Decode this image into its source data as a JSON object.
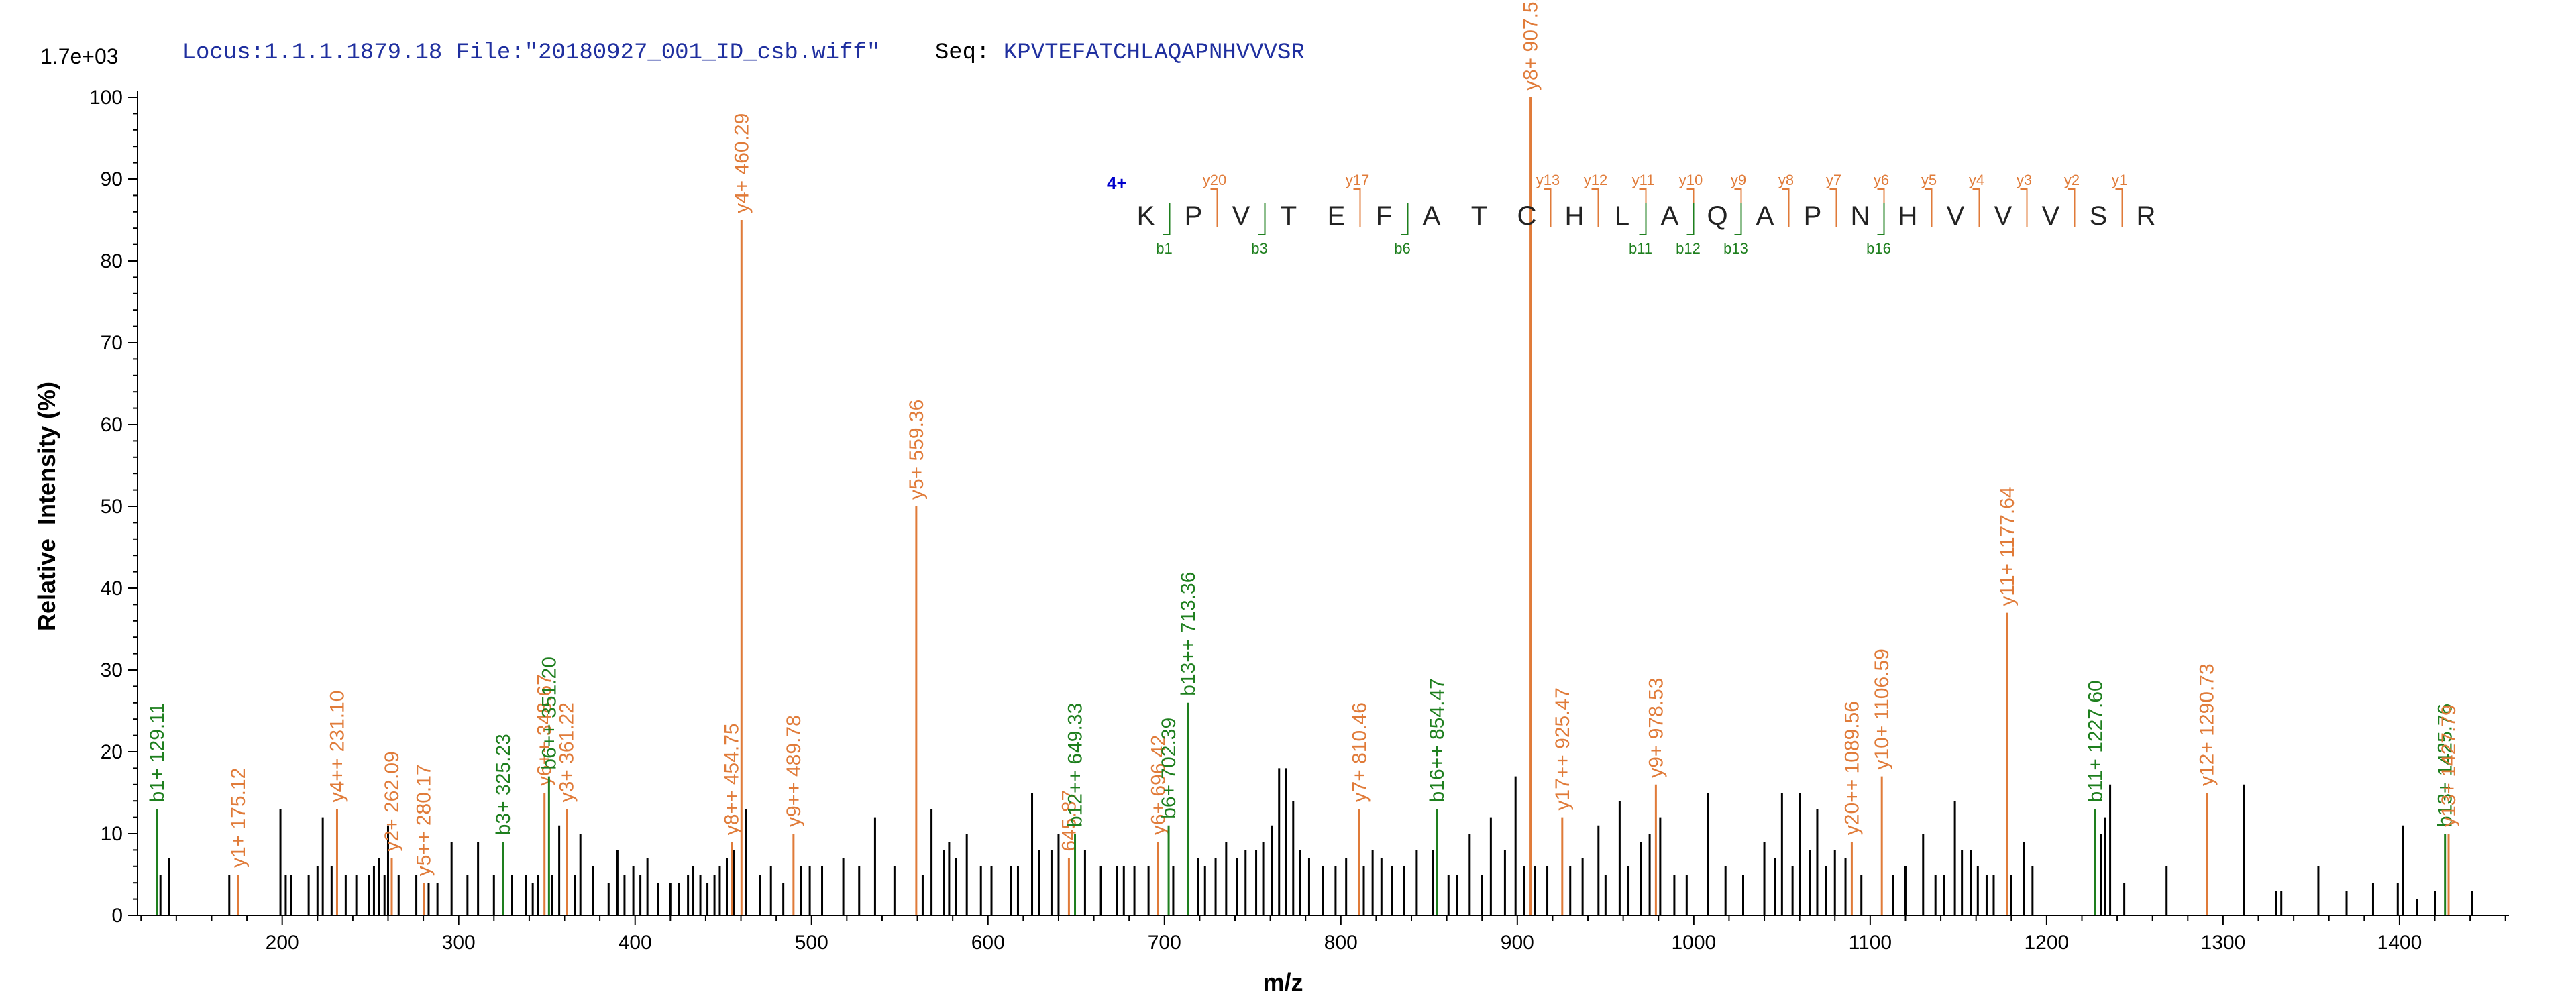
{
  "header": {
    "locus_label": "Locus:",
    "locus": "1.1.1.1879.18",
    "file_label": "File:",
    "file": "\"20180927_001_ID_csb.wiff\"",
    "seq_label": "Seq:",
    "seq": "KPVTEFATCHLAQAPNHVVVSR"
  },
  "colors": {
    "y_ion": "#E07B39",
    "b_ion": "#1E7F1E",
    "unmatched": "#000000",
    "header_blue": "#1F2F9F",
    "axis": "#000000"
  },
  "chart_data": {
    "type": "bar",
    "scale_label": "1.7e+03",
    "xlabel": "m/z",
    "ylabel": "Relative  Intensity (%)",
    "xlim": [
      118,
      1462
    ],
    "ylim": [
      0,
      100
    ],
    "x_ticks": [
      200,
      300,
      400,
      500,
      600,
      700,
      800,
      900,
      1000,
      1100,
      1200,
      1300,
      1400
    ],
    "y_ticks": [
      0,
      10,
      20,
      30,
      40,
      50,
      60,
      70,
      80,
      90,
      100
    ],
    "annotated_peaks": [
      {
        "label": "b1+ 129.11",
        "mz": 129.11,
        "intensity": 13,
        "ion": "b"
      },
      {
        "label": "y1+ 175.12",
        "mz": 175.12,
        "intensity": 5,
        "ion": "y"
      },
      {
        "label": "y4++ 231.10",
        "mz": 231.1,
        "intensity": 13,
        "ion": "y"
      },
      {
        "label": "y2+ 262.09",
        "mz": 262.09,
        "intensity": 7,
        "ion": "y"
      },
      {
        "label": "y5++ 280.17",
        "mz": 280.17,
        "intensity": 4,
        "ion": "y"
      },
      {
        "label": "b3+ 325.23",
        "mz": 325.23,
        "intensity": 9,
        "ion": "b"
      },
      {
        "label": "y6++ 348.67",
        "mz": 348.67,
        "intensity": 15,
        "ion": "y"
      },
      {
        "label": "b6++ 351.20",
        "mz": 351.2,
        "intensity": 17,
        "ion": "b"
      },
      {
        "label": "y3+ 361.22",
        "mz": 361.22,
        "intensity": 13,
        "ion": "y"
      },
      {
        "label": "y8++ 454.75",
        "mz": 454.75,
        "intensity": 9,
        "ion": "y"
      },
      {
        "label": "y4+ 460.29",
        "mz": 460.29,
        "intensity": 85,
        "ion": "y"
      },
      {
        "label": "y9++ 489.78",
        "mz": 489.78,
        "intensity": 10,
        "ion": "y"
      },
      {
        "label": "y5+ 559.36",
        "mz": 559.36,
        "intensity": 50,
        "ion": "y"
      },
      {
        "label": "645.87",
        "mz": 645.87,
        "intensity": 7,
        "ion": "y"
      },
      {
        "label": "b12++ 649.33",
        "mz": 649.33,
        "intensity": 10,
        "ion": "b"
      },
      {
        "label": "y6+ 696.42",
        "mz": 696.42,
        "intensity": 9,
        "ion": "y"
      },
      {
        "label": "b6+ 702.39",
        "mz": 702.39,
        "intensity": 11,
        "ion": "b"
      },
      {
        "label": "b13++ 713.36",
        "mz": 713.36,
        "intensity": 26,
        "ion": "b"
      },
      {
        "label": "y7+ 810.46",
        "mz": 810.46,
        "intensity": 13,
        "ion": "y"
      },
      {
        "label": "b16++ 854.47",
        "mz": 854.47,
        "intensity": 13,
        "ion": "b"
      },
      {
        "label": "y8+ 907.51",
        "mz": 907.51,
        "intensity": 100,
        "ion": "y"
      },
      {
        "label": "y17++ 925.47",
        "mz": 925.47,
        "intensity": 12,
        "ion": "y"
      },
      {
        "label": "y9+ 978.53",
        "mz": 978.53,
        "intensity": 16,
        "ion": "y"
      },
      {
        "label": "y20++ 1089.56",
        "mz": 1089.56,
        "intensity": 9,
        "ion": "y"
      },
      {
        "label": "y10+ 1106.59",
        "mz": 1106.59,
        "intensity": 17,
        "ion": "y"
      },
      {
        "label": "y11+ 1177.64",
        "mz": 1177.64,
        "intensity": 37,
        "ion": "y"
      },
      {
        "label": "b11+ 1227.60",
        "mz": 1227.6,
        "intensity": 13,
        "ion": "b"
      },
      {
        "label": "y12+ 1290.73",
        "mz": 1290.73,
        "intensity": 15,
        "ion": "y"
      },
      {
        "label": "b13+ 1425.76",
        "mz": 1425.76,
        "intensity": 10,
        "ion": "b"
      },
      {
        "label": "y13+ 1427.79",
        "mz": 1427.79,
        "intensity": 10,
        "ion": "y"
      }
    ],
    "unlabeled_peaks": [
      [
        131,
        5
      ],
      [
        136,
        7
      ],
      [
        170,
        5
      ],
      [
        199,
        13
      ],
      [
        202,
        5
      ],
      [
        205,
        5
      ],
      [
        215,
        5
      ],
      [
        220,
        6
      ],
      [
        223,
        12
      ],
      [
        228,
        6
      ],
      [
        236,
        5
      ],
      [
        242,
        5
      ],
      [
        249,
        5
      ],
      [
        252,
        6
      ],
      [
        255,
        7
      ],
      [
        258,
        5
      ],
      [
        260,
        11
      ],
      [
        266,
        5
      ],
      [
        276,
        5
      ],
      [
        283,
        4
      ],
      [
        288,
        4
      ],
      [
        296,
        9
      ],
      [
        305,
        5
      ],
      [
        311,
        9
      ],
      [
        320,
        5
      ],
      [
        330,
        5
      ],
      [
        338,
        5
      ],
      [
        342,
        4
      ],
      [
        345,
        5
      ],
      [
        353,
        5
      ],
      [
        357,
        11
      ],
      [
        366,
        5
      ],
      [
        369,
        10
      ],
      [
        376,
        6
      ],
      [
        385,
        4
      ],
      [
        390,
        8
      ],
      [
        394,
        5
      ],
      [
        399,
        6
      ],
      [
        403,
        5
      ],
      [
        407,
        7
      ],
      [
        413,
        4
      ],
      [
        420,
        4
      ],
      [
        425,
        4
      ],
      [
        430,
        5
      ],
      [
        433,
        6
      ],
      [
        437,
        5
      ],
      [
        441,
        4
      ],
      [
        445,
        5
      ],
      [
        448,
        6
      ],
      [
        452,
        7
      ],
      [
        456,
        8
      ],
      [
        463,
        13
      ],
      [
        471,
        5
      ],
      [
        477,
        6
      ],
      [
        484,
        4
      ],
      [
        494,
        6
      ],
      [
        499,
        6
      ],
      [
        506,
        6
      ],
      [
        518,
        7
      ],
      [
        527,
        6
      ],
      [
        536,
        12
      ],
      [
        547,
        6
      ],
      [
        563,
        5
      ],
      [
        568,
        13
      ],
      [
        575,
        8
      ],
      [
        578,
        9
      ],
      [
        582,
        7
      ],
      [
        588,
        10
      ],
      [
        596,
        6
      ],
      [
        602,
        6
      ],
      [
        613,
        6
      ],
      [
        617,
        6
      ],
      [
        625,
        15
      ],
      [
        629,
        8
      ],
      [
        636,
        8
      ],
      [
        640,
        10
      ],
      [
        655,
        8
      ],
      [
        664,
        6
      ],
      [
        673,
        6
      ],
      [
        677,
        6
      ],
      [
        683,
        6
      ],
      [
        691,
        6
      ],
      [
        705,
        6
      ],
      [
        719,
        7
      ],
      [
        723,
        6
      ],
      [
        729,
        7
      ],
      [
        735,
        9
      ],
      [
        741,
        7
      ],
      [
        746,
        8
      ],
      [
        752,
        8
      ],
      [
        756,
        9
      ],
      [
        761,
        11
      ],
      [
        765,
        18
      ],
      [
        769,
        18
      ],
      [
        773,
        14
      ],
      [
        777,
        8
      ],
      [
        782,
        7
      ],
      [
        790,
        6
      ],
      [
        797,
        6
      ],
      [
        803,
        7
      ],
      [
        813,
        6
      ],
      [
        818,
        8
      ],
      [
        823,
        7
      ],
      [
        829,
        6
      ],
      [
        836,
        6
      ],
      [
        843,
        8
      ],
      [
        852,
        8
      ],
      [
        861,
        5
      ],
      [
        866,
        5
      ],
      [
        873,
        10
      ],
      [
        880,
        5
      ],
      [
        885,
        12
      ],
      [
        893,
        8
      ],
      [
        899,
        17
      ],
      [
        904,
        6
      ],
      [
        910,
        6
      ],
      [
        917,
        6
      ],
      [
        930,
        6
      ],
      [
        937,
        7
      ],
      [
        946,
        11
      ],
      [
        950,
        5
      ],
      [
        958,
        14
      ],
      [
        963,
        6
      ],
      [
        970,
        9
      ],
      [
        975,
        10
      ],
      [
        981,
        12
      ],
      [
        989,
        5
      ],
      [
        996,
        5
      ],
      [
        1008,
        15
      ],
      [
        1018,
        6
      ],
      [
        1028,
        5
      ],
      [
        1040,
        9
      ],
      [
        1046,
        7
      ],
      [
        1050,
        15
      ],
      [
        1056,
        6
      ],
      [
        1060,
        15
      ],
      [
        1066,
        8
      ],
      [
        1070,
        13
      ],
      [
        1075,
        6
      ],
      [
        1080,
        8
      ],
      [
        1086,
        7
      ],
      [
        1095,
        5
      ],
      [
        1113,
        5
      ],
      [
        1120,
        6
      ],
      [
        1130,
        10
      ],
      [
        1137,
        5
      ],
      [
        1142,
        5
      ],
      [
        1148,
        14
      ],
      [
        1152,
        8
      ],
      [
        1157,
        8
      ],
      [
        1161,
        6
      ],
      [
        1166,
        5
      ],
      [
        1170,
        5
      ],
      [
        1180,
        5
      ],
      [
        1187,
        9
      ],
      [
        1192,
        6
      ],
      [
        1231,
        10
      ],
      [
        1233,
        12
      ],
      [
        1236,
        16
      ],
      [
        1244,
        4
      ],
      [
        1268,
        6
      ],
      [
        1312,
        16
      ],
      [
        1330,
        3
      ],
      [
        1333,
        3
      ],
      [
        1354,
        6
      ],
      [
        1370,
        3
      ],
      [
        1385,
        4
      ],
      [
        1399,
        4
      ],
      [
        1402,
        11
      ],
      [
        1410,
        2
      ],
      [
        1420,
        3
      ],
      [
        1441,
        3
      ]
    ]
  },
  "sequence_panel": {
    "charge": "4+",
    "residues": [
      "K",
      "P",
      "V",
      "T",
      "E",
      "F",
      "A",
      "T",
      "C",
      "H",
      "L",
      "A",
      "Q",
      "A",
      "P",
      "N",
      "H",
      "V",
      "V",
      "V",
      "S",
      "R"
    ],
    "y_labels": [
      {
        "after": 2,
        "text": "y20"
      },
      {
        "after": 5,
        "text": "y17"
      },
      {
        "after": 9,
        "text": "y13"
      },
      {
        "after": 10,
        "text": "y12"
      },
      {
        "after": 11,
        "text": "y11"
      },
      {
        "after": 12,
        "text": "y10"
      },
      {
        "after": 13,
        "text": "y9"
      },
      {
        "after": 14,
        "text": "y8"
      },
      {
        "after": 15,
        "text": "y7"
      },
      {
        "after": 16,
        "text": "y6"
      },
      {
        "after": 17,
        "text": "y5"
      },
      {
        "after": 18,
        "text": "y4"
      },
      {
        "after": 19,
        "text": "y3"
      },
      {
        "after": 20,
        "text": "y2"
      },
      {
        "after": 21,
        "text": "y1"
      }
    ],
    "b_labels": [
      {
        "after": 1,
        "text": "b1"
      },
      {
        "after": 3,
        "text": "b3"
      },
      {
        "after": 6,
        "text": "b6"
      },
      {
        "after": 11,
        "text": "b11"
      },
      {
        "after": 12,
        "text": "b12"
      },
      {
        "after": 13,
        "text": "b13"
      },
      {
        "after": 16,
        "text": "b16"
      }
    ]
  }
}
